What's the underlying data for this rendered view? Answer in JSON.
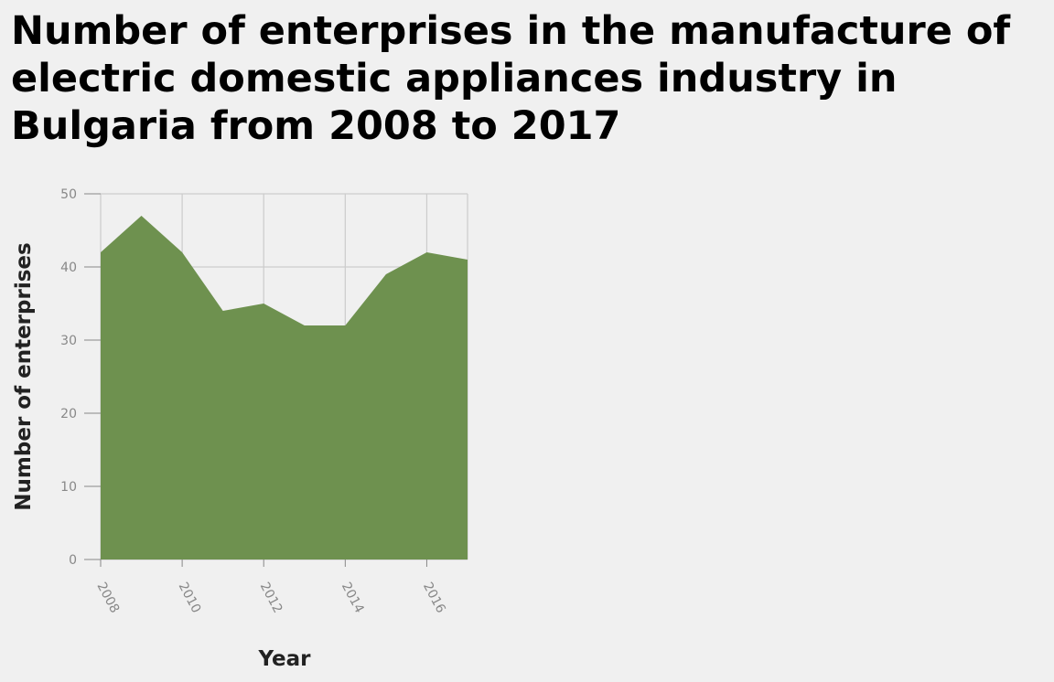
{
  "chart_data": {
    "type": "area",
    "title": "Number of enterprises in the manufacture of electric domestic appliances industry in Bulgaria from 2008 to 2017",
    "xlabel": "Year",
    "ylabel": "Number of enterprises",
    "x": [
      2008,
      2009,
      2010,
      2011,
      2012,
      2013,
      2014,
      2015,
      2016,
      2017
    ],
    "values": [
      42,
      47,
      42,
      34,
      35,
      32,
      32,
      39,
      42,
      41
    ],
    "xlim": [
      2008,
      2017
    ],
    "ylim": [
      0,
      50
    ],
    "x_ticks": [
      2008,
      2010,
      2012,
      2014,
      2016
    ],
    "y_ticks": [
      0,
      10,
      20,
      30,
      40,
      50
    ],
    "grid": true,
    "fill_color": "#6e914f",
    "grid_color": "#cccccc"
  }
}
